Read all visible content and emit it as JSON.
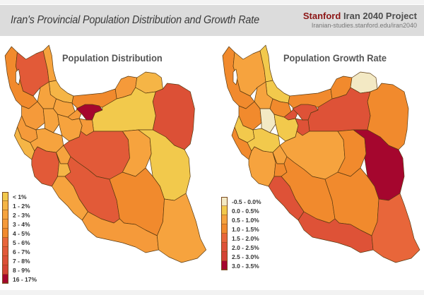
{
  "header": {
    "title": "Iran's Provincial Population Distribution and Growth Rate",
    "brand_stanford": "Stanford",
    "brand_rest": "Iran 2040 Project",
    "brand_url": "Iranian-studies.stanford.edu/iran2040",
    "background": "#dcdcdc",
    "stanford_color": "#8c1515"
  },
  "maps": [
    {
      "title": "Population Distribution",
      "legend": [
        {
          "label": "< 1%",
          "color": "#f2c94c"
        },
        {
          "label": "1 - 2%",
          "color": "#f5b546"
        },
        {
          "label": "2 - 3%",
          "color": "#f6a33e"
        },
        {
          "label": "3 - 4%",
          "color": "#f59a3a"
        },
        {
          "label": "4 - 5%",
          "color": "#f18a2d"
        },
        {
          "label": "5 - 6%",
          "color": "#e8663a"
        },
        {
          "label": "6 - 7%",
          "color": "#e25a38"
        },
        {
          "label": "7 - 8%",
          "color": "#dc5036"
        },
        {
          "label": "8 - 9%",
          "color": "#d44434"
        },
        {
          "label": "16 - 17%",
          "color": "#a5062e"
        }
      ],
      "provinces": {
        "west_azarbaijan": "#f18a2d",
        "east_azarbaijan": "#e25a38",
        "ardabil": "#f6a33e",
        "gilan": "#f5b546",
        "zanjan": "#f6a33e",
        "qazvin": "#f6a33e",
        "mazandaran": "#f18a2d",
        "golestan": "#f59a3a",
        "north_khorasan": "#f5b546",
        "razavi_khorasan": "#dc5036",
        "tehran": "#a5062e",
        "alborz": "#f59a3a",
        "semnan": "#f2c94c",
        "kurdistan": "#f59a3a",
        "hamadan": "#f6a33e",
        "markazi": "#f6a33e",
        "qom": "#f59a3a",
        "kermanshah": "#f59a3a",
        "ilam": "#f5b546",
        "lorestan": "#f6a33e",
        "isfahan": "#e25a38",
        "yazd": "#f6a33e",
        "south_khorasan": "#f2c94c",
        "khuzestan": "#e25a38",
        "kohgiluyeh": "#f5b546",
        "chaharmahal": "#f6a33e",
        "fars": "#e25a38",
        "bushehr": "#f6a33e",
        "kerman": "#f18a2d",
        "hormozgan": "#f59a3a",
        "sistan": "#f6a33e"
      }
    },
    {
      "title": "Population Growth Rate",
      "legend": [
        {
          "label": "-0.5 - 0.0%",
          "color": "#f3e9c4"
        },
        {
          "label": "0.0 - 0.5%",
          "color": "#f2c94c"
        },
        {
          "label": "0.5 - 1.0%",
          "color": "#f6a33e"
        },
        {
          "label": "1.0 - 1.5%",
          "color": "#f18a2d"
        },
        {
          "label": "1.5 - 2.0%",
          "color": "#e8663a"
        },
        {
          "label": "2.0 - 2.5%",
          "color": "#de5237"
        },
        {
          "label": "2.5 - 3.0%",
          "color": "#d44434"
        },
        {
          "label": "3.0 - 3.5%",
          "color": "#a5062e"
        }
      ],
      "provinces": {
        "west_azarbaijan": "#f18a2d",
        "east_azarbaijan": "#f6a33e",
        "ardabil": "#f2c94c",
        "gilan": "#f2c94c",
        "zanjan": "#f6a33e",
        "qazvin": "#f18a2d",
        "mazandaran": "#f18a2d",
        "golestan": "#f18a2d",
        "north_khorasan": "#f3e9c4",
        "razavi_khorasan": "#f18a2d",
        "tehran": "#de5237",
        "alborz": "#de5237",
        "semnan": "#de5237",
        "kurdistan": "#f18a2d",
        "hamadan": "#f3e9c4",
        "markazi": "#f2c94c",
        "qom": "#de5237",
        "kermanshah": "#f2c94c",
        "ilam": "#f18a2d",
        "lorestan": "#f2c94c",
        "isfahan": "#f6a33e",
        "yazd": "#f18a2d",
        "south_khorasan": "#a5062e",
        "khuzestan": "#f6a33e",
        "kohgiluyeh": "#f18a2d",
        "chaharmahal": "#f6a33e",
        "fars": "#f18a2d",
        "bushehr": "#de5237",
        "kerman": "#f18a2d",
        "hormozgan": "#de5237",
        "sistan": "#e8663a"
      }
    }
  ]
}
